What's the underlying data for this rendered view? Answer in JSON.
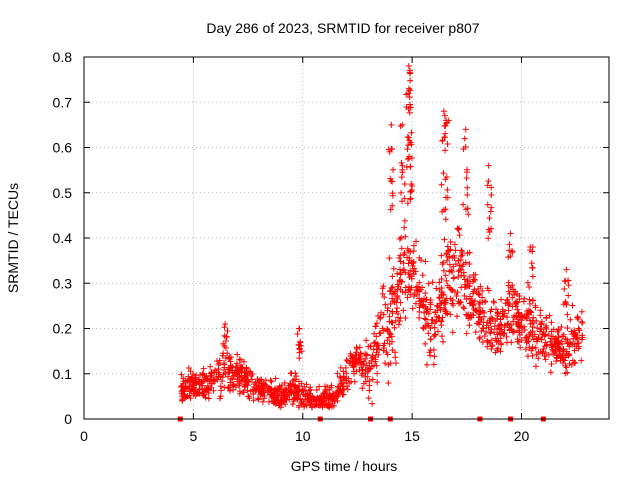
{
  "chart_data": {
    "type": "scatter",
    "title": "Day 286 of 2023, SRMTID for receiver p807",
    "xlabel": "GPS time / hours",
    "ylabel": "SRMTID / TECUs",
    "xlim": [
      0,
      24
    ],
    "ylim": [
      0,
      0.8
    ],
    "x_ticks": [
      0,
      5,
      10,
      15,
      20
    ],
    "x_tick_labels": [
      "0",
      "5",
      "10",
      "15",
      "20"
    ],
    "y_ticks": [
      0,
      0.1,
      0.2,
      0.3,
      0.4,
      0.5,
      0.6,
      0.7,
      0.8
    ],
    "y_tick_labels": [
      "0",
      "0.1",
      "0.2",
      "0.3",
      "0.4",
      "0.5",
      "0.6",
      "0.7",
      "0.8"
    ],
    "grid": true,
    "series_color": "#ff0000",
    "marker": "plus",
    "envelope": {
      "description": "Approximate median and spread of the SRMTID scatter read off the chart; points fill the band with random scatter",
      "x": [
        4.4,
        5.0,
        5.5,
        6.0,
        6.5,
        7.0,
        7.5,
        8.0,
        8.5,
        9.0,
        9.5,
        10.0,
        10.5,
        11.0,
        11.5,
        12.0,
        12.5,
        13.0,
        13.5,
        14.0,
        14.5,
        15.0,
        15.5,
        16.0,
        16.5,
        17.0,
        17.5,
        18.0,
        18.5,
        19.0,
        19.5,
        20.0,
        20.5,
        21.0,
        21.5,
        22.0,
        22.5,
        22.8
      ],
      "median": [
        0.06,
        0.08,
        0.07,
        0.09,
        0.11,
        0.1,
        0.08,
        0.07,
        0.06,
        0.05,
        0.07,
        0.05,
        0.04,
        0.04,
        0.05,
        0.1,
        0.14,
        0.1,
        0.18,
        0.22,
        0.3,
        0.32,
        0.25,
        0.2,
        0.3,
        0.33,
        0.28,
        0.24,
        0.2,
        0.21,
        0.23,
        0.22,
        0.2,
        0.19,
        0.17,
        0.15,
        0.18,
        0.2
      ],
      "spread": [
        0.03,
        0.03,
        0.03,
        0.04,
        0.05,
        0.04,
        0.04,
        0.03,
        0.03,
        0.03,
        0.04,
        0.03,
        0.03,
        0.03,
        0.03,
        0.04,
        0.04,
        0.06,
        0.08,
        0.12,
        0.12,
        0.1,
        0.08,
        0.08,
        0.12,
        0.12,
        0.1,
        0.08,
        0.08,
        0.08,
        0.08,
        0.08,
        0.07,
        0.07,
        0.06,
        0.06,
        0.06,
        0.06
      ]
    },
    "peaks": [
      {
        "x": 6.45,
        "y": 0.21
      },
      {
        "x": 9.85,
        "y": 0.2
      },
      {
        "x": 14.05,
        "y": 0.65
      },
      {
        "x": 14.55,
        "y": 0.65
      },
      {
        "x": 14.85,
        "y": 0.78
      },
      {
        "x": 14.9,
        "y": 0.77
      },
      {
        "x": 14.85,
        "y": 0.73
      },
      {
        "x": 16.45,
        "y": 0.68
      },
      {
        "x": 16.55,
        "y": 0.66
      },
      {
        "x": 17.45,
        "y": 0.64
      },
      {
        "x": 18.5,
        "y": 0.56
      },
      {
        "x": 19.5,
        "y": 0.41
      },
      {
        "x": 20.4,
        "y": 0.38
      },
      {
        "x": 22.05,
        "y": 0.33
      }
    ],
    "epoch_markers_x": [
      4.4,
      10.8,
      13.1,
      14.0,
      18.1,
      19.5,
      21.0
    ],
    "epoch_markers_y": 0
  }
}
